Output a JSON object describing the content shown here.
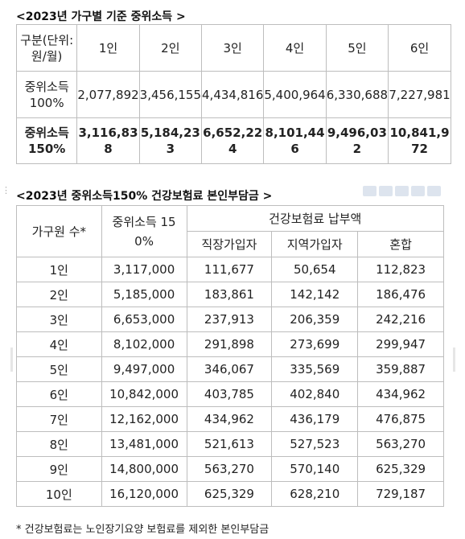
{
  "section1": {
    "title": "<2023년 가구별 기준 중위소득 >",
    "header": [
      "구분(단위:\n원/월)",
      "1인",
      "2인",
      "3인",
      "4인",
      "5인",
      "6인"
    ],
    "rows": [
      [
        "중위소득\n100%",
        "2,077,892",
        "3,456,155",
        "4,434,816",
        "5,400,964",
        "6,330,688",
        "7,227,981"
      ],
      [
        "중위소득\n150%",
        "3,116,83\n8",
        "5,184,23\n3",
        "6,652,22\n4",
        "8,101,44\n6",
        "9,496,03\n2",
        "10,841,9\n72"
      ]
    ]
  },
  "section2": {
    "title": "<2023년 중위소득150% 건강보험료 본인부담금 >",
    "toolbar_icons": [
      "comment-icon",
      "link-icon",
      "quote-icon",
      "settings-icon",
      "more-icon"
    ],
    "header": {
      "members": "가구원 수*",
      "income": "중위소득 15\n0%",
      "premium_group": "건강보험료 납부액",
      "employee": "직장가입자",
      "regional": "지역가입자",
      "mixed": "혼합"
    },
    "rows": [
      [
        "1인",
        "3,117,000",
        "111,677",
        "50,654",
        "112,823"
      ],
      [
        "2인",
        "5,185,000",
        "183,861",
        "142,142",
        "186,476"
      ],
      [
        "3인",
        "6,653,000",
        "237,913",
        "206,359",
        "242,216"
      ],
      [
        "4인",
        "8,102,000",
        "291,898",
        "273,699",
        "299,947"
      ],
      [
        "5인",
        "9,497,000",
        "346,067",
        "335,569",
        "359,887"
      ],
      [
        "6인",
        "10,842,000",
        "403,785",
        "402,840",
        "434,962"
      ],
      [
        "7인",
        "12,162,000",
        "434,962",
        "436,179",
        "476,875"
      ],
      [
        "8인",
        "13,481,000",
        "521,613",
        "527,523",
        "563,270"
      ],
      [
        "9인",
        "14,800,000",
        "563,270",
        "570,140",
        "625,329"
      ],
      [
        "10인",
        "16,120,000",
        "625,329",
        "628,210",
        "729,187"
      ]
    ],
    "footnote": "* 건강보험료는 노인장기요양 보험료를 제외한 본인부담금"
  }
}
